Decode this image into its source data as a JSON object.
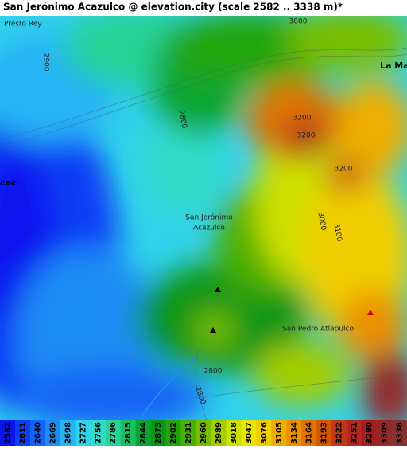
{
  "header": {
    "title": "San Jerónimo Acazulco @ elevation.city (scale 2582 .. 3338 m)*"
  },
  "map": {
    "labels": [
      "Presto Rey",
      "2900",
      "3000",
      "La Ma",
      "2800",
      "3200",
      "3200",
      "3200",
      "cac",
      "San Jerónimo",
      "Acazulco",
      "3000",
      "3100",
      "San Pedro Atlapulco",
      "2800",
      "2800"
    ]
  },
  "legend": {
    "items": [
      {
        "label": 2582,
        "color": "#0a14f0"
      },
      {
        "label": 2611,
        "color": "#0f3cf5"
      },
      {
        "label": 2640,
        "color": "#1464f5"
      },
      {
        "label": 2669,
        "color": "#1e8cf5"
      },
      {
        "label": 2698,
        "color": "#28b4f5"
      },
      {
        "label": 2727,
        "color": "#32d2eb"
      },
      {
        "label": 2756,
        "color": "#32dcc8"
      },
      {
        "label": 2786,
        "color": "#28d296"
      },
      {
        "label": 2815,
        "color": "#19be5f"
      },
      {
        "label": 2844,
        "color": "#0aa532"
      },
      {
        "label": 2873,
        "color": "#0a9614"
      },
      {
        "label": 2902,
        "color": "#23a50a"
      },
      {
        "label": 2931,
        "color": "#4baf05"
      },
      {
        "label": 2960,
        "color": "#78be00"
      },
      {
        "label": 2989,
        "color": "#a5cd00"
      },
      {
        "label": 3018,
        "color": "#cde100"
      },
      {
        "label": 3047,
        "color": "#ebe600"
      },
      {
        "label": 3076,
        "color": "#f0cd00"
      },
      {
        "label": 3105,
        "color": "#f0af00"
      },
      {
        "label": 3134,
        "color": "#eb9100"
      },
      {
        "label": 3164,
        "color": "#e17300"
      },
      {
        "label": 3193,
        "color": "#d25500"
      },
      {
        "label": 3222,
        "color": "#c33719"
      },
      {
        "label": 3251,
        "color": "#b42823"
      },
      {
        "label": 3280,
        "color": "#a51e1e"
      },
      {
        "label": 3309,
        "color": "#962828"
      },
      {
        "label": 3338,
        "color": "#873232"
      }
    ]
  }
}
